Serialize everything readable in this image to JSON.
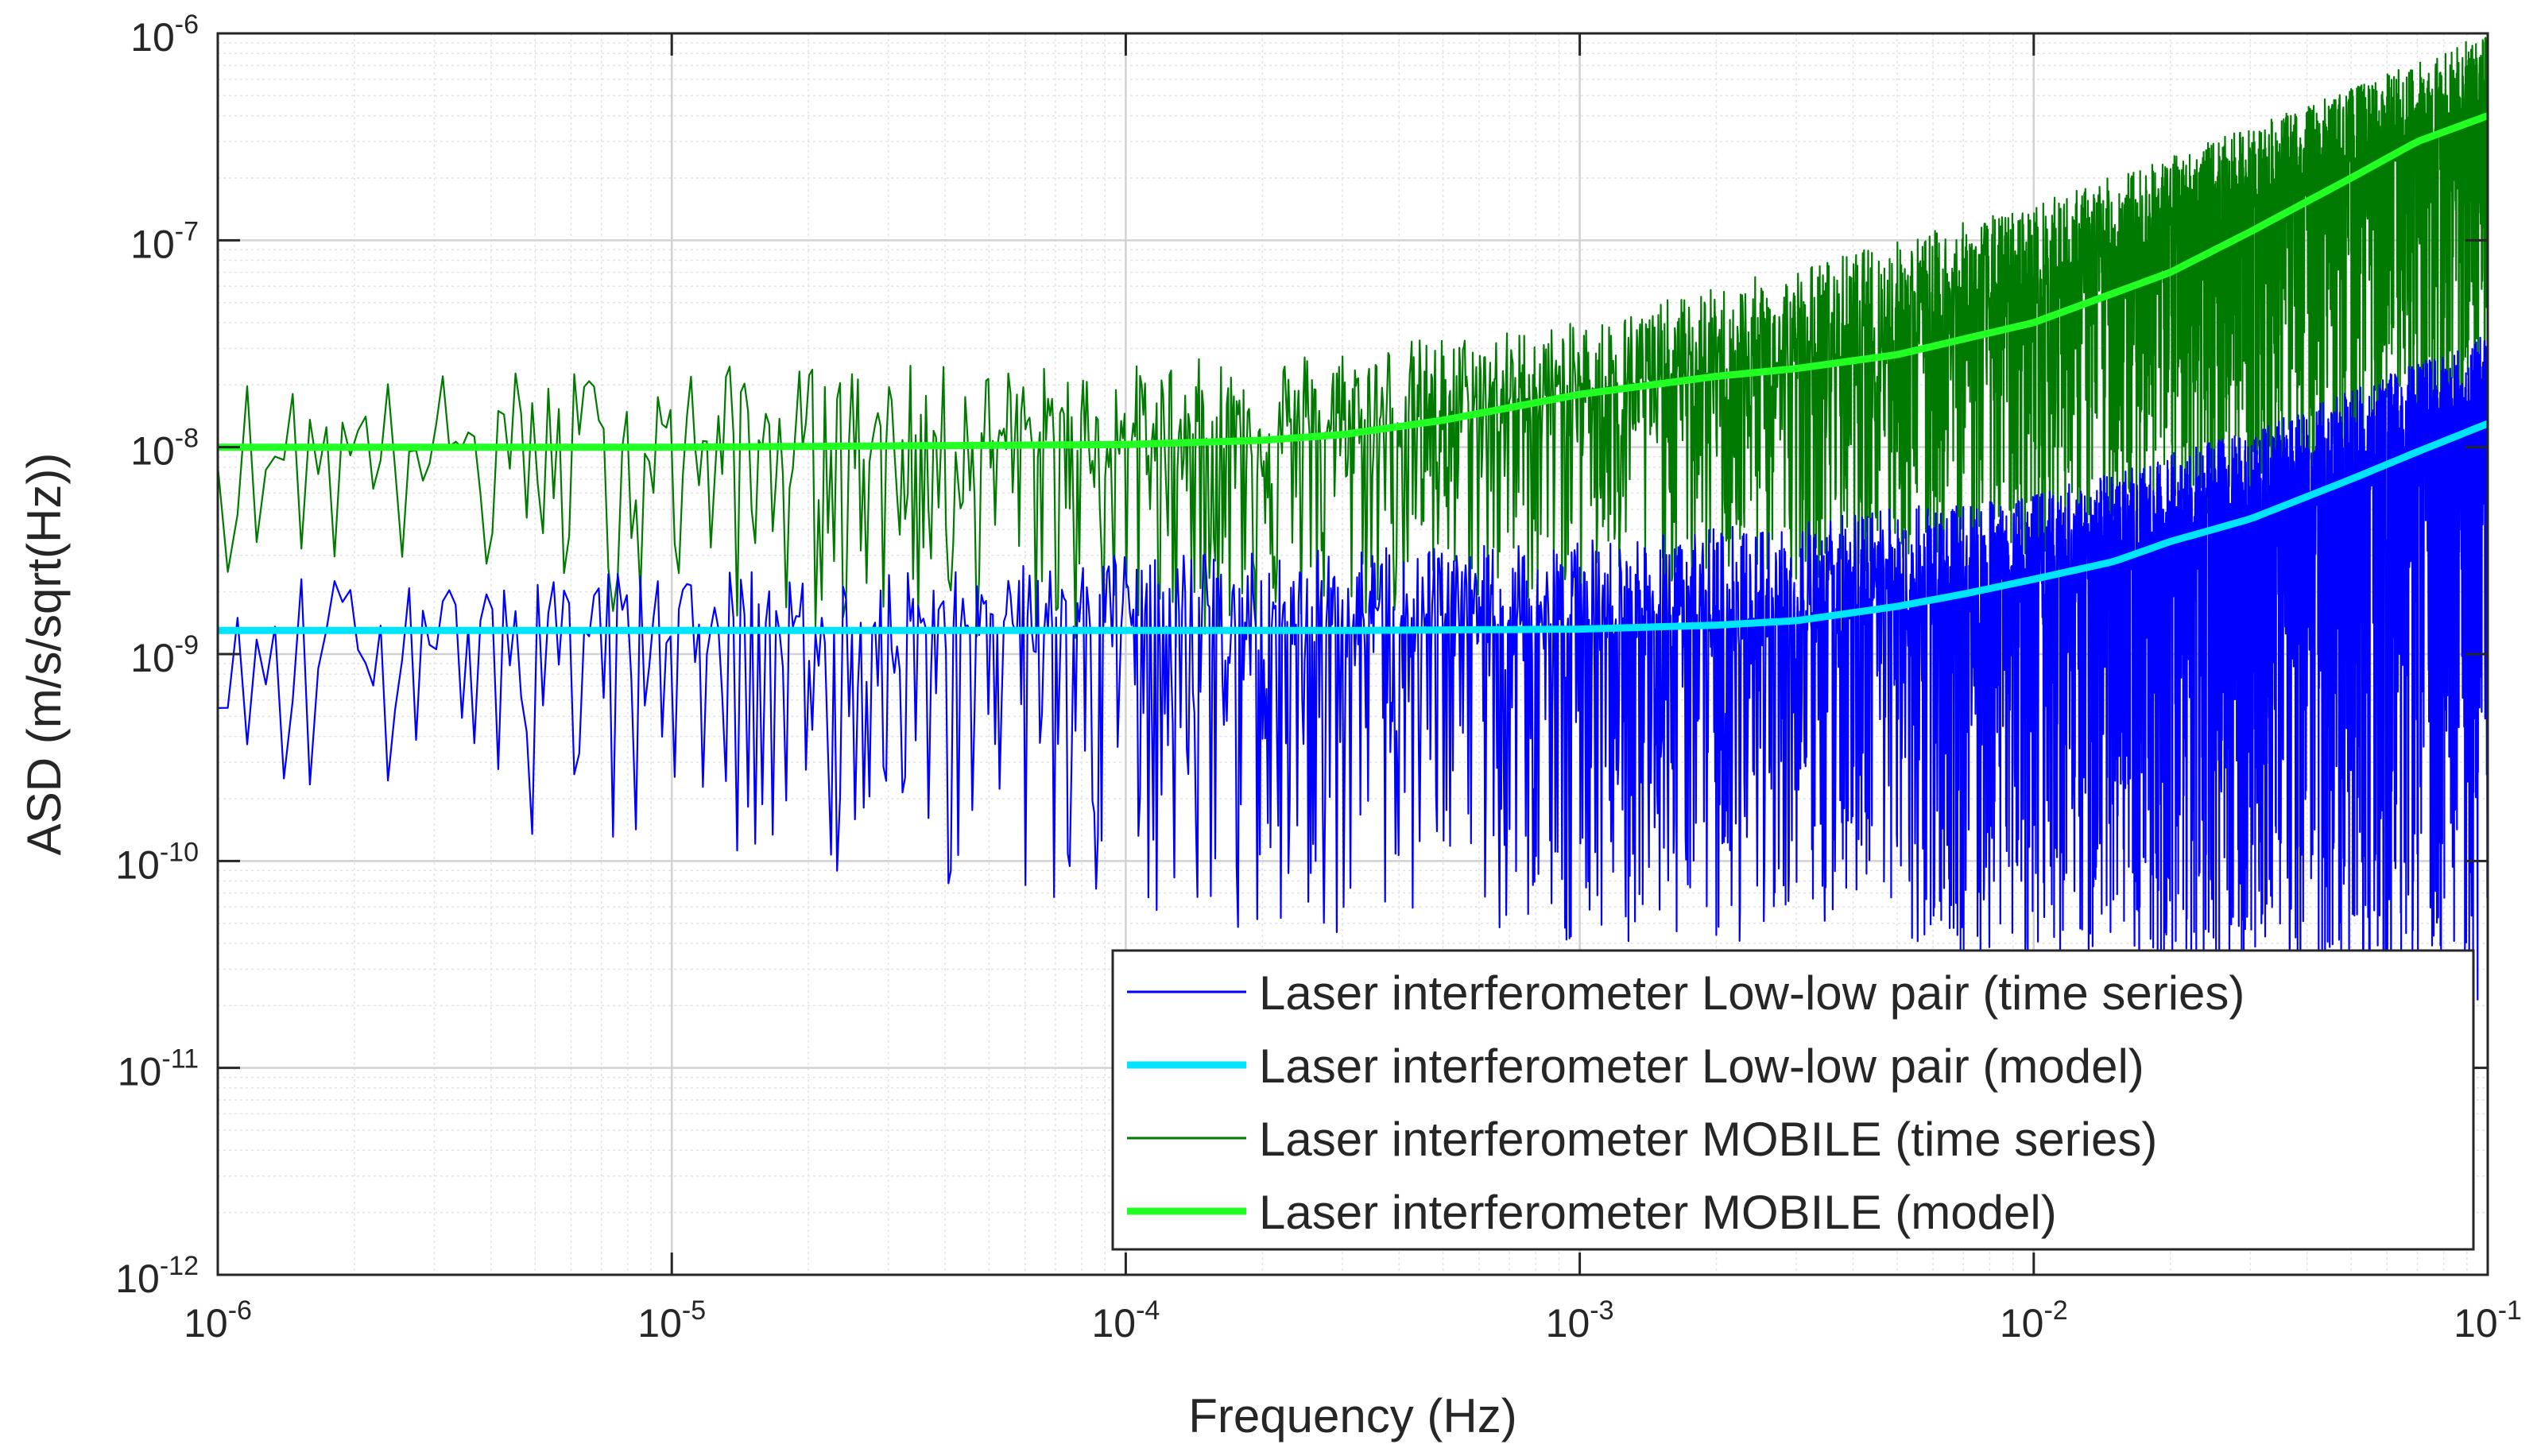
{
  "chart_data": {
    "type": "line",
    "xscale": "log",
    "yscale": "log",
    "xlabel": "Frequency (Hz)",
    "ylabel": "ASD (m/s/sqrt(Hz))",
    "xlim": [
      1e-06,
      0.1
    ],
    "ylim": [
      1e-12,
      1e-06
    ],
    "grid": true,
    "minor_grid": true,
    "legend_position": "bottom-right",
    "x_ticks": [
      {
        "base": "10",
        "exp": "-6",
        "value": 1e-06
      },
      {
        "base": "10",
        "exp": "-5",
        "value": 1e-05
      },
      {
        "base": "10",
        "exp": "-4",
        "value": 0.0001
      },
      {
        "base": "10",
        "exp": "-3",
        "value": 0.001
      },
      {
        "base": "10",
        "exp": "-2",
        "value": 0.01
      },
      {
        "base": "10",
        "exp": "-1",
        "value": 0.1
      }
    ],
    "y_ticks": [
      {
        "base": "10",
        "exp": "-12",
        "value": 1e-12
      },
      {
        "base": "10",
        "exp": "-11",
        "value": 1e-11
      },
      {
        "base": "10",
        "exp": "-10",
        "value": 1e-10
      },
      {
        "base": "10",
        "exp": "-9",
        "value": 1e-09
      },
      {
        "base": "10",
        "exp": "-8",
        "value": 1e-08
      },
      {
        "base": "10",
        "exp": "-7",
        "value": 1e-07
      },
      {
        "base": "10",
        "exp": "-6",
        "value": 1e-06
      }
    ],
    "series": [
      {
        "name": "Laser interferometer Low-low pair (time series)",
        "kind": "time_series",
        "color": "#0000ff",
        "line_width": "thin",
        "median_curve": {
          "x": [
            1e-06,
            1e-05,
            0.0001,
            0.0003,
            0.001,
            0.003,
            0.005,
            0.01,
            0.02,
            0.05,
            0.1
          ],
          "y": [
            1.3e-09,
            1.3e-09,
            1.3e-09,
            1.3e-09,
            1.32e-09,
            1.45e-09,
            1.7e-09,
            2.3e-09,
            3.5e-09,
            7e-09,
            1.3e-08
          ]
        },
        "envelope_max": {
          "x": [
            1e-06,
            1e-05,
            0.0001,
            0.001,
            0.01,
            0.03,
            0.1
          ],
          "y": [
            2.5e-09,
            2.5e-09,
            3e-09,
            3.5e-09,
            6e-09,
            1.2e-08,
            3.5e-08
          ]
        },
        "envelope_min": {
          "x": [
            1e-06,
            1e-05,
            0.0001,
            0.001,
            0.01,
            0.1
          ],
          "y": [
            1.5e-10,
            1.2e-10,
            5e-11,
            4e-11,
            3e-11,
            2e-11
          ]
        }
      },
      {
        "name": "Laser interferometer Low-low pair (model)",
        "kind": "model",
        "color": "#00e5ff",
        "line_width": "thick",
        "x": [
          1e-06,
          1e-05,
          0.0001,
          0.0003,
          0.001,
          0.002,
          0.003,
          0.005,
          0.007,
          0.01,
          0.015,
          0.02,
          0.03,
          0.05,
          0.07,
          0.1
        ],
        "y": [
          1.3e-09,
          1.3e-09,
          1.3e-09,
          1.3e-09,
          1.32e-09,
          1.38e-09,
          1.45e-09,
          1.7e-09,
          1.95e-09,
          2.3e-09,
          2.8e-09,
          3.5e-09,
          4.5e-09,
          7e-09,
          9.5e-09,
          1.3e-08
        ]
      },
      {
        "name": "Laser interferometer MOBILE (time series)",
        "kind": "time_series",
        "color": "#007a00",
        "line_width": "thin",
        "median_curve": {
          "x": [
            1e-06,
            1e-05,
            0.0001,
            0.0003,
            0.001,
            0.003,
            0.01,
            0.03,
            0.1
          ],
          "y": [
            1e-08,
            1e-08,
            1.05e-08,
            1.2e-08,
            1.9e-08,
            2.5e-08,
            5.5e-08,
            1.5e-07,
            4e-07
          ]
        },
        "envelope_max": {
          "x": [
            1e-06,
            1e-05,
            0.0001,
            0.001,
            0.01,
            0.03,
            0.1
          ],
          "y": [
            2.2e-08,
            2.5e-08,
            2.5e-08,
            4e-08,
            1.5e-07,
            3.5e-07,
            1e-06
          ]
        },
        "envelope_min": {
          "x": [
            1e-06,
            1e-05,
            0.0001,
            0.001,
            0.01,
            0.1
          ],
          "y": [
            2.5e-09,
            1.5e-09,
            1e-09,
            1.8e-09,
            3e-09,
            1e-08
          ]
        }
      },
      {
        "name": "Laser interferometer MOBILE (model)",
        "kind": "model",
        "color": "#22ff22",
        "line_width": "thick",
        "x": [
          1e-06,
          1e-05,
          0.0001,
          0.0002,
          0.0003,
          0.0005,
          0.001,
          0.002,
          0.003,
          0.005,
          0.01,
          0.02,
          0.03,
          0.05,
          0.07,
          0.1
        ],
        "y": [
          1e-08,
          1e-08,
          1.03e-08,
          1.08e-08,
          1.15e-08,
          1.35e-08,
          1.8e-08,
          2.2e-08,
          2.4e-08,
          2.8e-08,
          4e-08,
          7e-08,
          1.1e-07,
          2e-07,
          3e-07,
          4e-07
        ]
      }
    ]
  }
}
